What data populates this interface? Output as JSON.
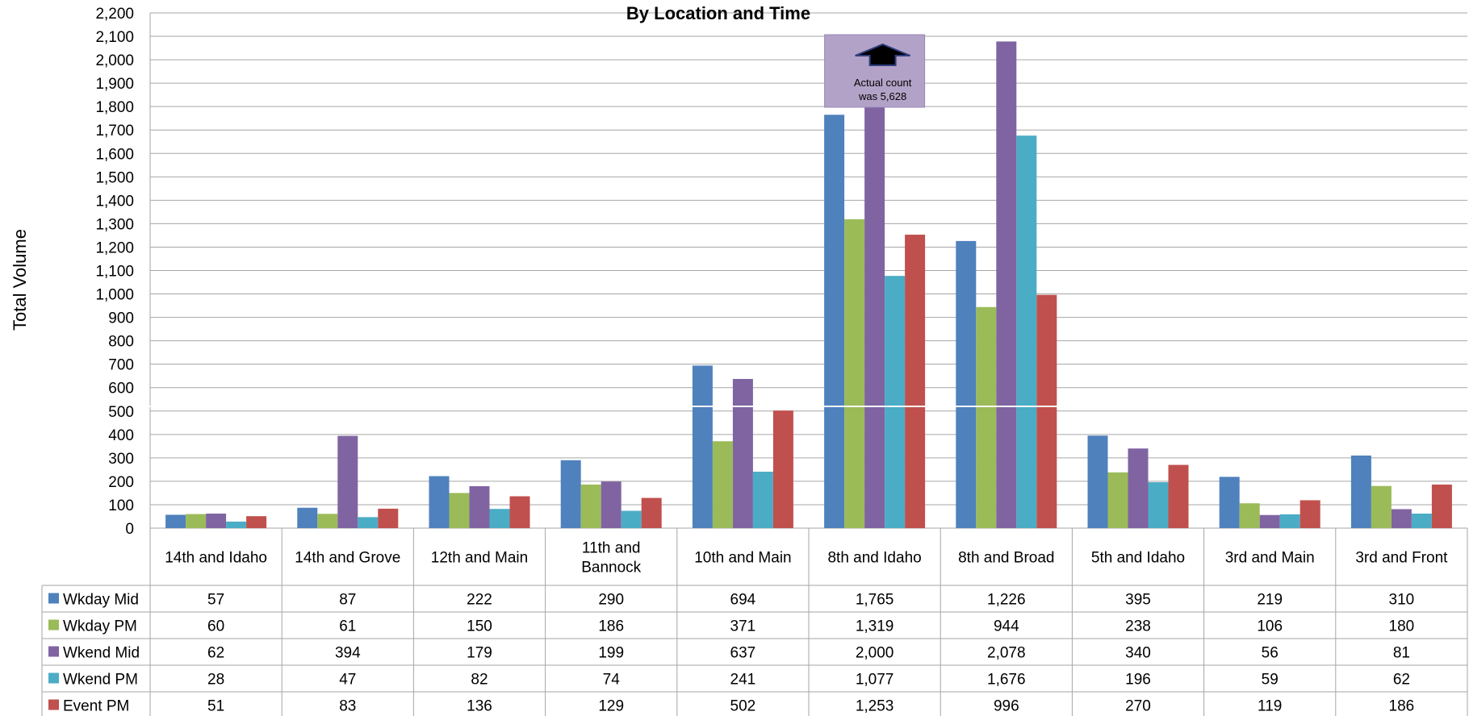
{
  "chart_data": {
    "type": "bar",
    "title": "By Location and Time",
    "ylabel": "Total Volume",
    "xlabel": "",
    "ylim": [
      0,
      2200
    ],
    "ytick_step": 100,
    "grid": true,
    "legend_placement": "data-table-left",
    "categories": [
      [
        "14th and Idaho"
      ],
      [
        "14th and Grove"
      ],
      [
        "12th and Main"
      ],
      [
        "11th and",
        "Bannock"
      ],
      [
        "10th and Main"
      ],
      [
        "8th and Idaho"
      ],
      [
        "8th and Broad"
      ],
      [
        "5th and Idaho"
      ],
      [
        "3rd and Main"
      ],
      [
        "3rd and Front"
      ]
    ],
    "series": [
      {
        "name": "Wkday Mid",
        "color": "#4F81BD",
        "values": [
          57,
          87,
          222,
          290,
          694,
          1765,
          1226,
          395,
          219,
          310
        ],
        "labels": [
          "57",
          "87",
          "222",
          "290",
          "694",
          "1,765",
          "1,226",
          "395",
          "219",
          "310"
        ]
      },
      {
        "name": "Wkday PM",
        "color": "#9BBB59",
        "values": [
          60,
          61,
          150,
          186,
          371,
          1319,
          944,
          238,
          106,
          180
        ],
        "labels": [
          "60",
          "61",
          "150",
          "186",
          "371",
          "1,319",
          "944",
          "238",
          "106",
          "180"
        ]
      },
      {
        "name": "Wkend Mid",
        "color": "#8064A2",
        "values": [
          62,
          394,
          179,
          199,
          637,
          2000,
          2078,
          340,
          56,
          81
        ],
        "labels": [
          "62",
          "394",
          "179",
          "199",
          "637",
          "2,000",
          "2,078",
          "340",
          "56",
          "81"
        ]
      },
      {
        "name": "Wkend PM",
        "color": "#4BACC6",
        "values": [
          28,
          47,
          82,
          74,
          241,
          1077,
          1676,
          196,
          59,
          62
        ],
        "labels": [
          "28",
          "47",
          "82",
          "74",
          "241",
          "1,077",
          "1,676",
          "196",
          "59",
          "62"
        ]
      },
      {
        "name": "Event PM",
        "color": "#C0504D",
        "values": [
          51,
          83,
          136,
          129,
          502,
          1253,
          996,
          270,
          119,
          186
        ],
        "labels": [
          "51",
          "83",
          "136",
          "129",
          "502",
          "1,253",
          "996",
          "270",
          "119",
          "186"
        ]
      }
    ],
    "annotation": {
      "lines": [
        "Actual count",
        "was 5,628"
      ],
      "category_index": 5,
      "box_color": "#B3A2C7",
      "arrow_color": "#000000"
    }
  }
}
